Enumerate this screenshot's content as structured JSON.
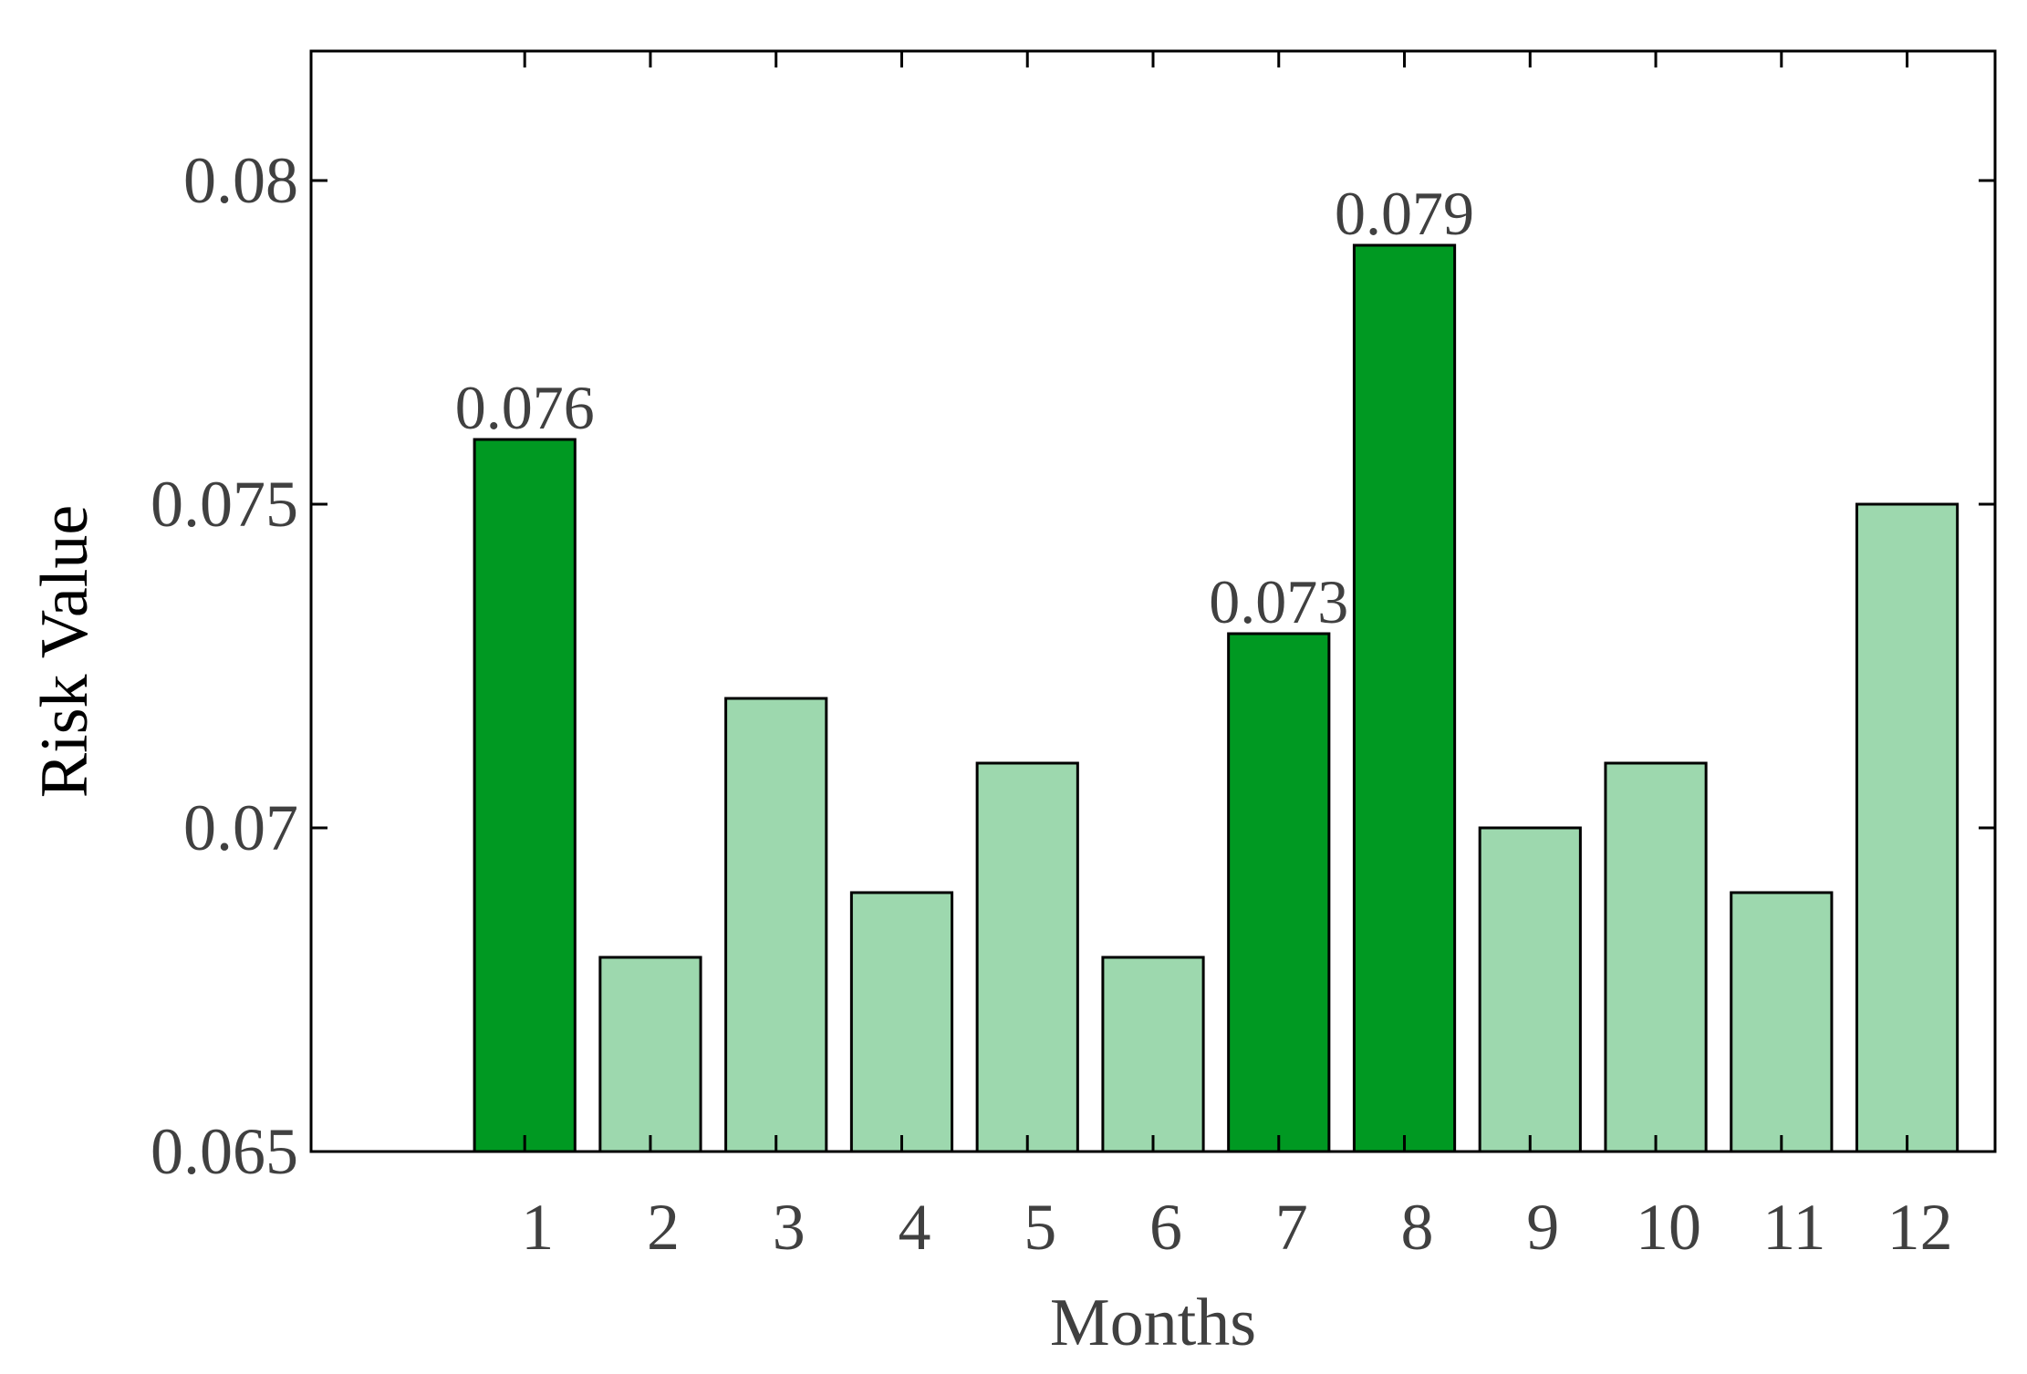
{
  "chart_data": {
    "type": "bar",
    "title": "",
    "xlabel": "Months",
    "ylabel": "Risk Value",
    "categories": [
      "1",
      "2",
      "3",
      "4",
      "5",
      "6",
      "7",
      "8",
      "9",
      "10",
      "11",
      "12"
    ],
    "values": [
      0.076,
      0.068,
      0.072,
      0.069,
      0.071,
      0.068,
      0.073,
      0.079,
      0.07,
      0.071,
      0.069,
      0.075
    ],
    "ylim": [
      0.065,
      0.082
    ],
    "yticks": [
      0.065,
      0.07,
      0.075,
      0.08
    ],
    "ytick_labels": [
      "0.065",
      "0.07",
      "0.075",
      "0.08"
    ],
    "data_labels": [
      {
        "category": "1",
        "text": "0.076"
      },
      {
        "category": "7",
        "text": "0.073"
      },
      {
        "category": "8",
        "text": "0.079"
      }
    ],
    "highlighted_categories": [
      "1",
      "7",
      "8"
    ],
    "grid": false,
    "legend": "none",
    "colors": {
      "highlight": "#009922",
      "normal": "#9dd8ae",
      "edge": "#000000",
      "text": "#404040"
    }
  }
}
